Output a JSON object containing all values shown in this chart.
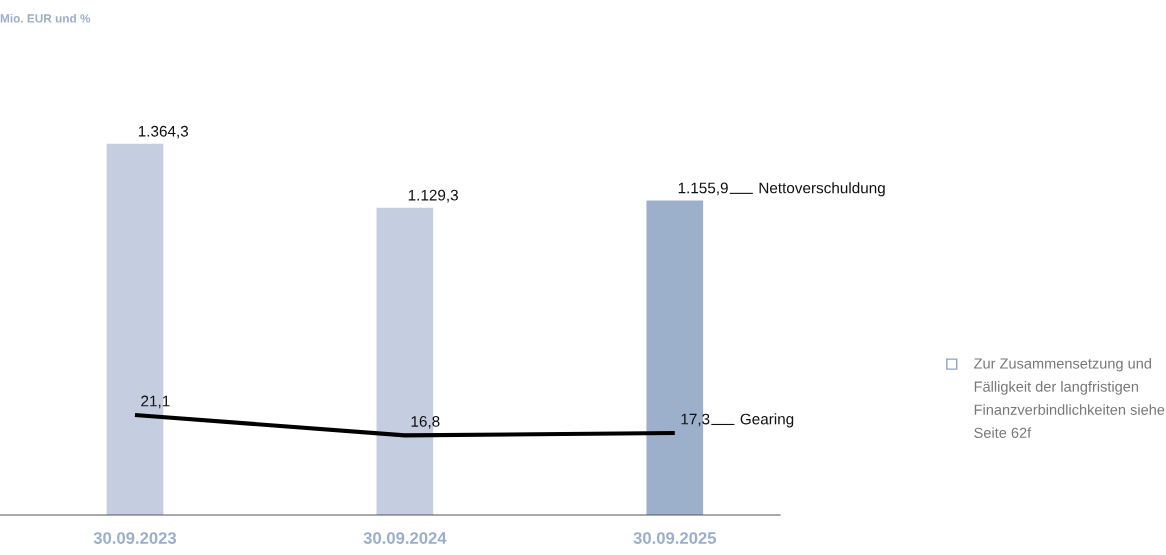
{
  "chart_data": {
    "type": "bar",
    "title": "Mio. EUR und %",
    "categories": [
      "30.09.2023",
      "30.09.2024",
      "30.09.2025"
    ],
    "series": [
      {
        "name": "Nettoverschuldung",
        "colors": [
          "#c5cde0",
          "#c5cde0",
          "#9cb0cc"
        ],
        "values": [
          1364.3,
          1129.3,
          1155.9
        ],
        "value_labels": [
          "1.364,3",
          "1.129,3",
          "1.155,9"
        ]
      },
      {
        "name": "Gearing",
        "type": "line",
        "axis": "y2",
        "color": "#000000",
        "values": [
          21.1,
          16.8,
          17.3
        ],
        "value_labels": [
          "21,1",
          "16,8",
          "17,3"
        ]
      }
    ],
    "annotations": [
      "Zur Zusammensetzung und\nFälligkeit der langfristigen\nFinanzverbindlichkeiten siehe\nSeite 62f"
    ],
    "grid": false,
    "legend": false
  }
}
